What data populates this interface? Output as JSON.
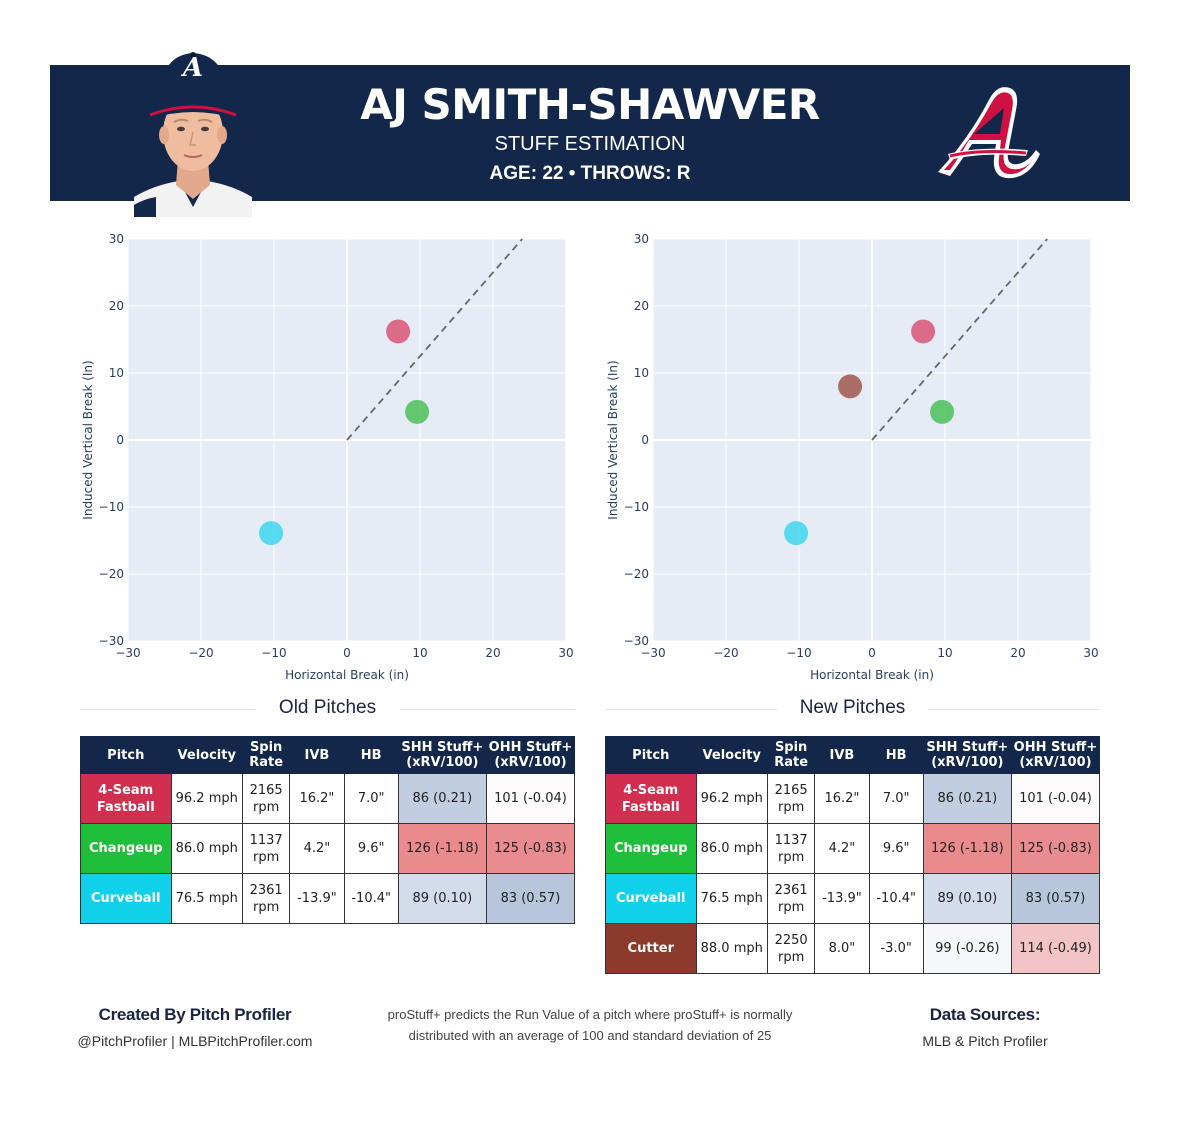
{
  "header": {
    "player_name": "AJ SMITH-SHAWVER",
    "subtitle": "STUFF ESTIMATION",
    "age_throws": "AGE: 22 • THROWS: R",
    "team_logo_icon": "atlanta-braves-logo-icon",
    "cap_logo_letter": "A",
    "colors": {
      "navy": "#13274a",
      "red": "#ce1141"
    }
  },
  "chart_data": [
    {
      "type": "scatter",
      "title": "",
      "xlabel": "Horizontal Break (in)",
      "ylabel": "Induced Vertical Break (In)",
      "xlim": [
        -30,
        30
      ],
      "ylim": [
        -30,
        30
      ],
      "x_ticks": [
        "−30",
        "−20",
        "−10",
        "0",
        "10",
        "20",
        "30"
      ],
      "y_ticks": [
        "30",
        "20",
        "10",
        "0",
        "−10",
        "−20",
        "−30"
      ],
      "grid": true,
      "reference_line": {
        "from": [
          0,
          0
        ],
        "to": [
          24,
          30
        ],
        "style": "dashed"
      },
      "points": [
        {
          "pitch": "4-Seam Fastball",
          "x": 7.0,
          "y": 16.2,
          "color": "#d9476a"
        },
        {
          "pitch": "Changeup",
          "x": 9.6,
          "y": 4.2,
          "color": "#3fbd4c"
        },
        {
          "pitch": "Curveball",
          "x": -10.4,
          "y": -13.9,
          "color": "#2fd3ee"
        }
      ]
    },
    {
      "type": "scatter",
      "title": "",
      "xlabel": "Horizontal Break (in)",
      "ylabel": "Induced Vertical Break (In)",
      "xlim": [
        -30,
        30
      ],
      "ylim": [
        -30,
        30
      ],
      "x_ticks": [
        "−30",
        "−20",
        "−10",
        "0",
        "10",
        "20",
        "30"
      ],
      "y_ticks": [
        "30",
        "20",
        "10",
        "0",
        "−10",
        "−20",
        "−30"
      ],
      "grid": true,
      "reference_line": {
        "from": [
          0,
          0
        ],
        "to": [
          24,
          30
        ],
        "style": "dashed"
      },
      "points": [
        {
          "pitch": "4-Seam Fastball",
          "x": 7.0,
          "y": 16.2,
          "color": "#d9476a"
        },
        {
          "pitch": "Changeup",
          "x": 9.6,
          "y": 4.2,
          "color": "#3fbd4c"
        },
        {
          "pitch": "Curveball",
          "x": -10.4,
          "y": -13.9,
          "color": "#2fd3ee"
        },
        {
          "pitch": "Cutter",
          "x": -3.0,
          "y": 8.0,
          "color": "#9b4a3d"
        }
      ]
    }
  ],
  "tables": {
    "columns": [
      "Pitch",
      "Velocity",
      "Spin Rate",
      "IVB",
      "HB",
      "SHH Stuff+ (xRV/100)",
      "OHH Stuff+ (xRV/100)"
    ],
    "old": {
      "title": "Old Pitches",
      "rows": [
        {
          "pitch": "4-Seam Fastball",
          "color": "#d22e4f",
          "velocity": "96.2 mph",
          "spin": "2165 rpm",
          "ivb": "16.2\"",
          "hb": "7.0\"",
          "shh": "86 (0.21)",
          "shh_bg": "#c1cde0",
          "ohh": "101 (-0.04)",
          "ohh_bg": "#fdfbfb"
        },
        {
          "pitch": "Changeup",
          "color": "#1fbf3c",
          "velocity": "86.0 mph",
          "spin": "1137 rpm",
          "ivb": "4.2\"",
          "hb": "9.6\"",
          "shh": "126 (-1.18)",
          "shh_bg": "#e98a8d",
          "ohh": "125 (-0.83)",
          "ohh_bg": "#e98c8f"
        },
        {
          "pitch": "Curveball",
          "color": "#10d0ea",
          "velocity": "76.5 mph",
          "spin": "2361 rpm",
          "ivb": "-13.9\"",
          "hb": "-10.4\"",
          "shh": "89 (0.10)",
          "shh_bg": "#d3dcea",
          "ohh": "83 (0.57)",
          "ohh_bg": "#b8c6dc"
        }
      ]
    },
    "new": {
      "title": "New Pitches",
      "rows": [
        {
          "pitch": "4-Seam Fastball",
          "color": "#d22e4f",
          "velocity": "96.2 mph",
          "spin": "2165 rpm",
          "ivb": "16.2\"",
          "hb": "7.0\"",
          "shh": "86 (0.21)",
          "shh_bg": "#c1cde0",
          "ohh": "101 (-0.04)",
          "ohh_bg": "#fdfbfb"
        },
        {
          "pitch": "Changeup",
          "color": "#1fbf3c",
          "velocity": "86.0 mph",
          "spin": "1137 rpm",
          "ivb": "4.2\"",
          "hb": "9.6\"",
          "shh": "126 (-1.18)",
          "shh_bg": "#e98a8d",
          "ohh": "125 (-0.83)",
          "ohh_bg": "#e98c8f"
        },
        {
          "pitch": "Curveball",
          "color": "#10d0ea",
          "velocity": "76.5 mph",
          "spin": "2361 rpm",
          "ivb": "-13.9\"",
          "hb": "-10.4\"",
          "shh": "89 (0.10)",
          "shh_bg": "#d3dcea",
          "ohh": "83 (0.57)",
          "ohh_bg": "#b8c6dc"
        },
        {
          "pitch": "Cutter",
          "color": "#8c3a2b",
          "velocity": "88.0 mph",
          "spin": "2250 rpm",
          "ivb": "8.0\"",
          "hb": "-3.0\"",
          "shh": "99 (-0.26)",
          "shh_bg": "#f6f7fa",
          "ohh": "114 (-0.49)",
          "ohh_bg": "#f3c4c6"
        }
      ]
    }
  },
  "footer": {
    "created_by": "Created By Pitch Profiler",
    "handles": "@PitchProfiler | MLBPitchProfiler.com",
    "description_line1": "proStuff+ predicts the Run Value of a pitch where proStuff+ is normally",
    "description_line2": "distributed with an average of 100 and standard deviation of 25",
    "sources_title": "Data Sources:",
    "sources": "MLB & Pitch Profiler"
  }
}
